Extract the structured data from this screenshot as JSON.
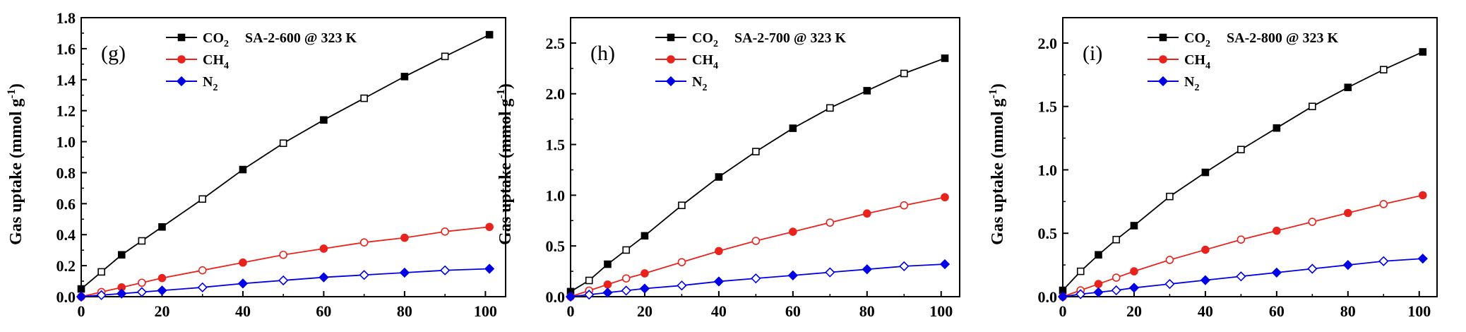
{
  "chart_data": [
    {
      "type": "line",
      "panel_label": "(g)",
      "annotation": "SA-2-600 @ 323 K",
      "ylabel": "Gas uptake (mmol g-1)",
      "xlim": [
        0,
        105
      ],
      "ylim": [
        0,
        1.8
      ],
      "xticks": [
        "0",
        "20",
        "40",
        "60",
        "80",
        "100"
      ],
      "yticks": [
        "0.0",
        "0.2",
        "0.4",
        "0.6",
        "0.8",
        "1.0",
        "1.2",
        "1.4",
        "1.6",
        "1.8"
      ],
      "x": [
        0,
        5,
        10,
        15,
        20,
        30,
        40,
        50,
        60,
        70,
        80,
        90,
        101
      ],
      "series": [
        {
          "name": "CO2",
          "color": "#000000",
          "values": [
            0.05,
            0.16,
            0.27,
            0.36,
            0.45,
            0.63,
            0.82,
            0.99,
            1.14,
            1.28,
            1.42,
            1.55,
            1.69
          ]
        },
        {
          "name": "CH4",
          "color": "#e8231e",
          "values": [
            0.0,
            0.03,
            0.06,
            0.09,
            0.12,
            0.17,
            0.22,
            0.27,
            0.31,
            0.35,
            0.38,
            0.42,
            0.45
          ]
        },
        {
          "name": "N2",
          "color": "#0000e6",
          "values": [
            0.0,
            0.01,
            0.02,
            0.03,
            0.04,
            0.06,
            0.085,
            0.105,
            0.125,
            0.14,
            0.155,
            0.17,
            0.18
          ]
        }
      ]
    },
    {
      "type": "line",
      "panel_label": "(h)",
      "annotation": "SA-2-700 @ 323 K",
      "ylabel": "Gas uptake (mmol g-1)",
      "xlim": [
        0,
        105
      ],
      "ylim": [
        0,
        2.75
      ],
      "xticks": [
        "0",
        "20",
        "40",
        "60",
        "80",
        "100"
      ],
      "yticks": [
        "0.0",
        "0.5",
        "1.0",
        "1.5",
        "2.0",
        "2.5"
      ],
      "x": [
        0,
        5,
        10,
        15,
        20,
        30,
        40,
        50,
        60,
        70,
        80,
        90,
        101
      ],
      "series": [
        {
          "name": "CO2",
          "color": "#000000",
          "values": [
            0.05,
            0.16,
            0.32,
            0.46,
            0.6,
            0.9,
            1.18,
            1.43,
            1.66,
            1.86,
            2.03,
            2.2,
            2.35
          ]
        },
        {
          "name": "CH4",
          "color": "#e8231e",
          "values": [
            0.0,
            0.06,
            0.12,
            0.18,
            0.23,
            0.34,
            0.45,
            0.55,
            0.64,
            0.73,
            0.82,
            0.9,
            0.98
          ]
        },
        {
          "name": "N2",
          "color": "#0000e6",
          "values": [
            0.0,
            0.02,
            0.04,
            0.06,
            0.08,
            0.11,
            0.15,
            0.18,
            0.21,
            0.24,
            0.27,
            0.3,
            0.32
          ]
        }
      ]
    },
    {
      "type": "line",
      "panel_label": "(i)",
      "annotation": "SA-2-800 @ 323 K",
      "ylabel": "Gas uptake (mmol g-1)",
      "xlim": [
        0,
        105
      ],
      "ylim": [
        0,
        2.2
      ],
      "xticks": [
        "0",
        "20",
        "40",
        "60",
        "80",
        "100"
      ],
      "yticks": [
        "0.0",
        "0.5",
        "1.0",
        "1.5",
        "2.0"
      ],
      "x": [
        0,
        5,
        10,
        15,
        20,
        30,
        40,
        50,
        60,
        70,
        80,
        90,
        101
      ],
      "series": [
        {
          "name": "CO2",
          "color": "#000000",
          "values": [
            0.05,
            0.2,
            0.33,
            0.45,
            0.56,
            0.79,
            0.98,
            1.16,
            1.33,
            1.5,
            1.65,
            1.79,
            1.93
          ]
        },
        {
          "name": "CH4",
          "color": "#e8231e",
          "values": [
            0.0,
            0.05,
            0.1,
            0.15,
            0.2,
            0.29,
            0.37,
            0.45,
            0.52,
            0.59,
            0.66,
            0.73,
            0.8
          ]
        },
        {
          "name": "N2",
          "color": "#0000e6",
          "values": [
            0.0,
            0.02,
            0.035,
            0.05,
            0.07,
            0.1,
            0.13,
            0.16,
            0.19,
            0.22,
            0.25,
            0.28,
            0.3
          ]
        }
      ]
    }
  ]
}
